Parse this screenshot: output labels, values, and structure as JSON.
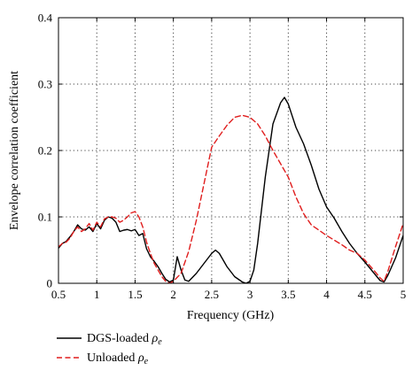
{
  "chart_data": {
    "type": "line",
    "xlabel": "Frequency (GHz)",
    "ylabel": "Envelope correlation coefficient",
    "xlim": [
      0.5,
      5
    ],
    "ylim": [
      0,
      0.4
    ],
    "x_ticks": [
      "0.5",
      "1",
      "1.5",
      "2",
      "2.5",
      "3",
      "3.5",
      "4",
      "4.5",
      "5"
    ],
    "y_ticks": [
      "0",
      "0.1",
      "0.2",
      "0.3",
      "0.4"
    ],
    "x_tick_values": [
      0.5,
      1,
      1.5,
      2,
      2.5,
      3,
      3.5,
      4,
      4.5,
      5
    ],
    "y_tick_values": [
      0,
      0.1,
      0.2,
      0.3,
      0.4
    ],
    "grid": true,
    "legend_position": "below",
    "series": [
      {
        "name": "DGS-loaded ρe",
        "legend_label": "DGS-loaded ",
        "legend_symbol": "ρ",
        "legend_subscript": "e",
        "color": "#000000",
        "style": "solid",
        "x": [
          0.5,
          0.55,
          0.6,
          0.65,
          0.7,
          0.75,
          0.8,
          0.85,
          0.9,
          0.95,
          1.0,
          1.05,
          1.1,
          1.15,
          1.2,
          1.25,
          1.3,
          1.35,
          1.4,
          1.45,
          1.5,
          1.55,
          1.6,
          1.65,
          1.7,
          1.75,
          1.8,
          1.85,
          1.9,
          1.95,
          2.0,
          2.05,
          2.1,
          2.15,
          2.2,
          2.3,
          2.4,
          2.5,
          2.55,
          2.6,
          2.7,
          2.8,
          2.9,
          2.95,
          3.0,
          3.05,
          3.1,
          3.2,
          3.3,
          3.4,
          3.45,
          3.5,
          3.6,
          3.7,
          3.8,
          3.9,
          4.0,
          4.1,
          4.2,
          4.3,
          4.4,
          4.5,
          4.6,
          4.7,
          4.75,
          4.8,
          4.9,
          5.0
        ],
        "y": [
          0.053,
          0.06,
          0.063,
          0.07,
          0.078,
          0.088,
          0.082,
          0.08,
          0.085,
          0.078,
          0.09,
          0.082,
          0.095,
          0.1,
          0.098,
          0.092,
          0.078,
          0.08,
          0.081,
          0.079,
          0.081,
          0.072,
          0.075,
          0.052,
          0.04,
          0.033,
          0.025,
          0.015,
          0.006,
          0.002,
          0.005,
          0.04,
          0.02,
          0.005,
          0.003,
          0.015,
          0.03,
          0.045,
          0.05,
          0.045,
          0.025,
          0.01,
          0.002,
          0.0,
          0.003,
          0.02,
          0.06,
          0.16,
          0.24,
          0.272,
          0.28,
          0.27,
          0.235,
          0.21,
          0.178,
          0.142,
          0.115,
          0.098,
          0.078,
          0.06,
          0.045,
          0.032,
          0.018,
          0.004,
          0.002,
          0.012,
          0.038,
          0.072
        ]
      },
      {
        "name": "Unloaded ρe",
        "legend_label": "Unloaded ",
        "legend_symbol": "ρ",
        "legend_subscript": "e",
        "color": "#e01d1d",
        "style": "dashed",
        "x": [
          0.5,
          0.55,
          0.6,
          0.65,
          0.7,
          0.75,
          0.8,
          0.85,
          0.9,
          0.95,
          1.0,
          1.05,
          1.1,
          1.15,
          1.2,
          1.25,
          1.3,
          1.35,
          1.4,
          1.45,
          1.5,
          1.55,
          1.6,
          1.65,
          1.7,
          1.75,
          1.8,
          1.85,
          1.9,
          1.95,
          2.0,
          2.1,
          2.2,
          2.3,
          2.4,
          2.5,
          2.6,
          2.7,
          2.8,
          2.9,
          3.0,
          3.1,
          3.2,
          3.3,
          3.4,
          3.5,
          3.6,
          3.7,
          3.8,
          3.9,
          4.0,
          4.1,
          4.2,
          4.3,
          4.4,
          4.5,
          4.6,
          4.7,
          4.75,
          4.8,
          4.9,
          5.0
        ],
        "y": [
          0.055,
          0.06,
          0.062,
          0.068,
          0.078,
          0.085,
          0.078,
          0.082,
          0.09,
          0.08,
          0.092,
          0.085,
          0.097,
          0.1,
          0.1,
          0.098,
          0.092,
          0.095,
          0.1,
          0.106,
          0.108,
          0.1,
          0.085,
          0.062,
          0.045,
          0.03,
          0.02,
          0.01,
          0.003,
          0.0,
          0.003,
          0.015,
          0.048,
          0.095,
          0.15,
          0.205,
          0.222,
          0.238,
          0.25,
          0.253,
          0.25,
          0.24,
          0.222,
          0.2,
          0.18,
          0.16,
          0.13,
          0.105,
          0.088,
          0.08,
          0.072,
          0.065,
          0.058,
          0.05,
          0.045,
          0.035,
          0.022,
          0.008,
          0.003,
          0.018,
          0.055,
          0.09
        ]
      }
    ]
  }
}
